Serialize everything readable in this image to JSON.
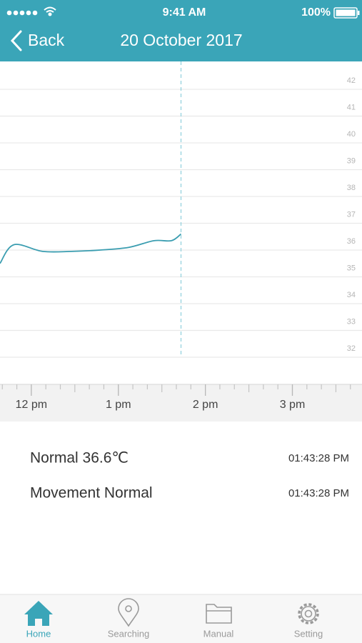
{
  "status_bar": {
    "time": "9:41 AM",
    "battery": "100%"
  },
  "nav": {
    "back": "Back",
    "title": "20 October 2017"
  },
  "chart_data": {
    "type": "line",
    "x": [
      11.64,
      11.8,
      12.13,
      12.46,
      12.79,
      13.12,
      13.41,
      13.61,
      13.72
    ],
    "values": [
      35.5,
      36.2,
      35.95,
      35.95,
      36.0,
      36.1,
      36.35,
      36.35,
      36.6
    ],
    "color": "#3a9db0",
    "xlim": [
      11.64,
      15.8
    ],
    "xticks": [
      {
        "value": 12,
        "label": "12 pm"
      },
      {
        "value": 13,
        "label": "1 pm"
      },
      {
        "value": 14,
        "label": "2 pm"
      },
      {
        "value": 15,
        "label": "3 pm"
      }
    ],
    "ylim": [
      32,
      42
    ],
    "yticks": [
      32,
      33,
      34,
      35,
      36,
      37,
      38,
      39,
      40,
      41,
      42
    ],
    "grid": true
  },
  "records": [
    {
      "text": "Normal 36.6℃",
      "time": "01:43:28 PM"
    },
    {
      "text": "Movement Normal",
      "time": "01:43:28 PM"
    }
  ],
  "tabs": [
    {
      "label": "Home",
      "active": true
    },
    {
      "label": "Searching",
      "active": false
    },
    {
      "label": "Manual",
      "active": false
    },
    {
      "label": "Setting",
      "active": false
    }
  ]
}
